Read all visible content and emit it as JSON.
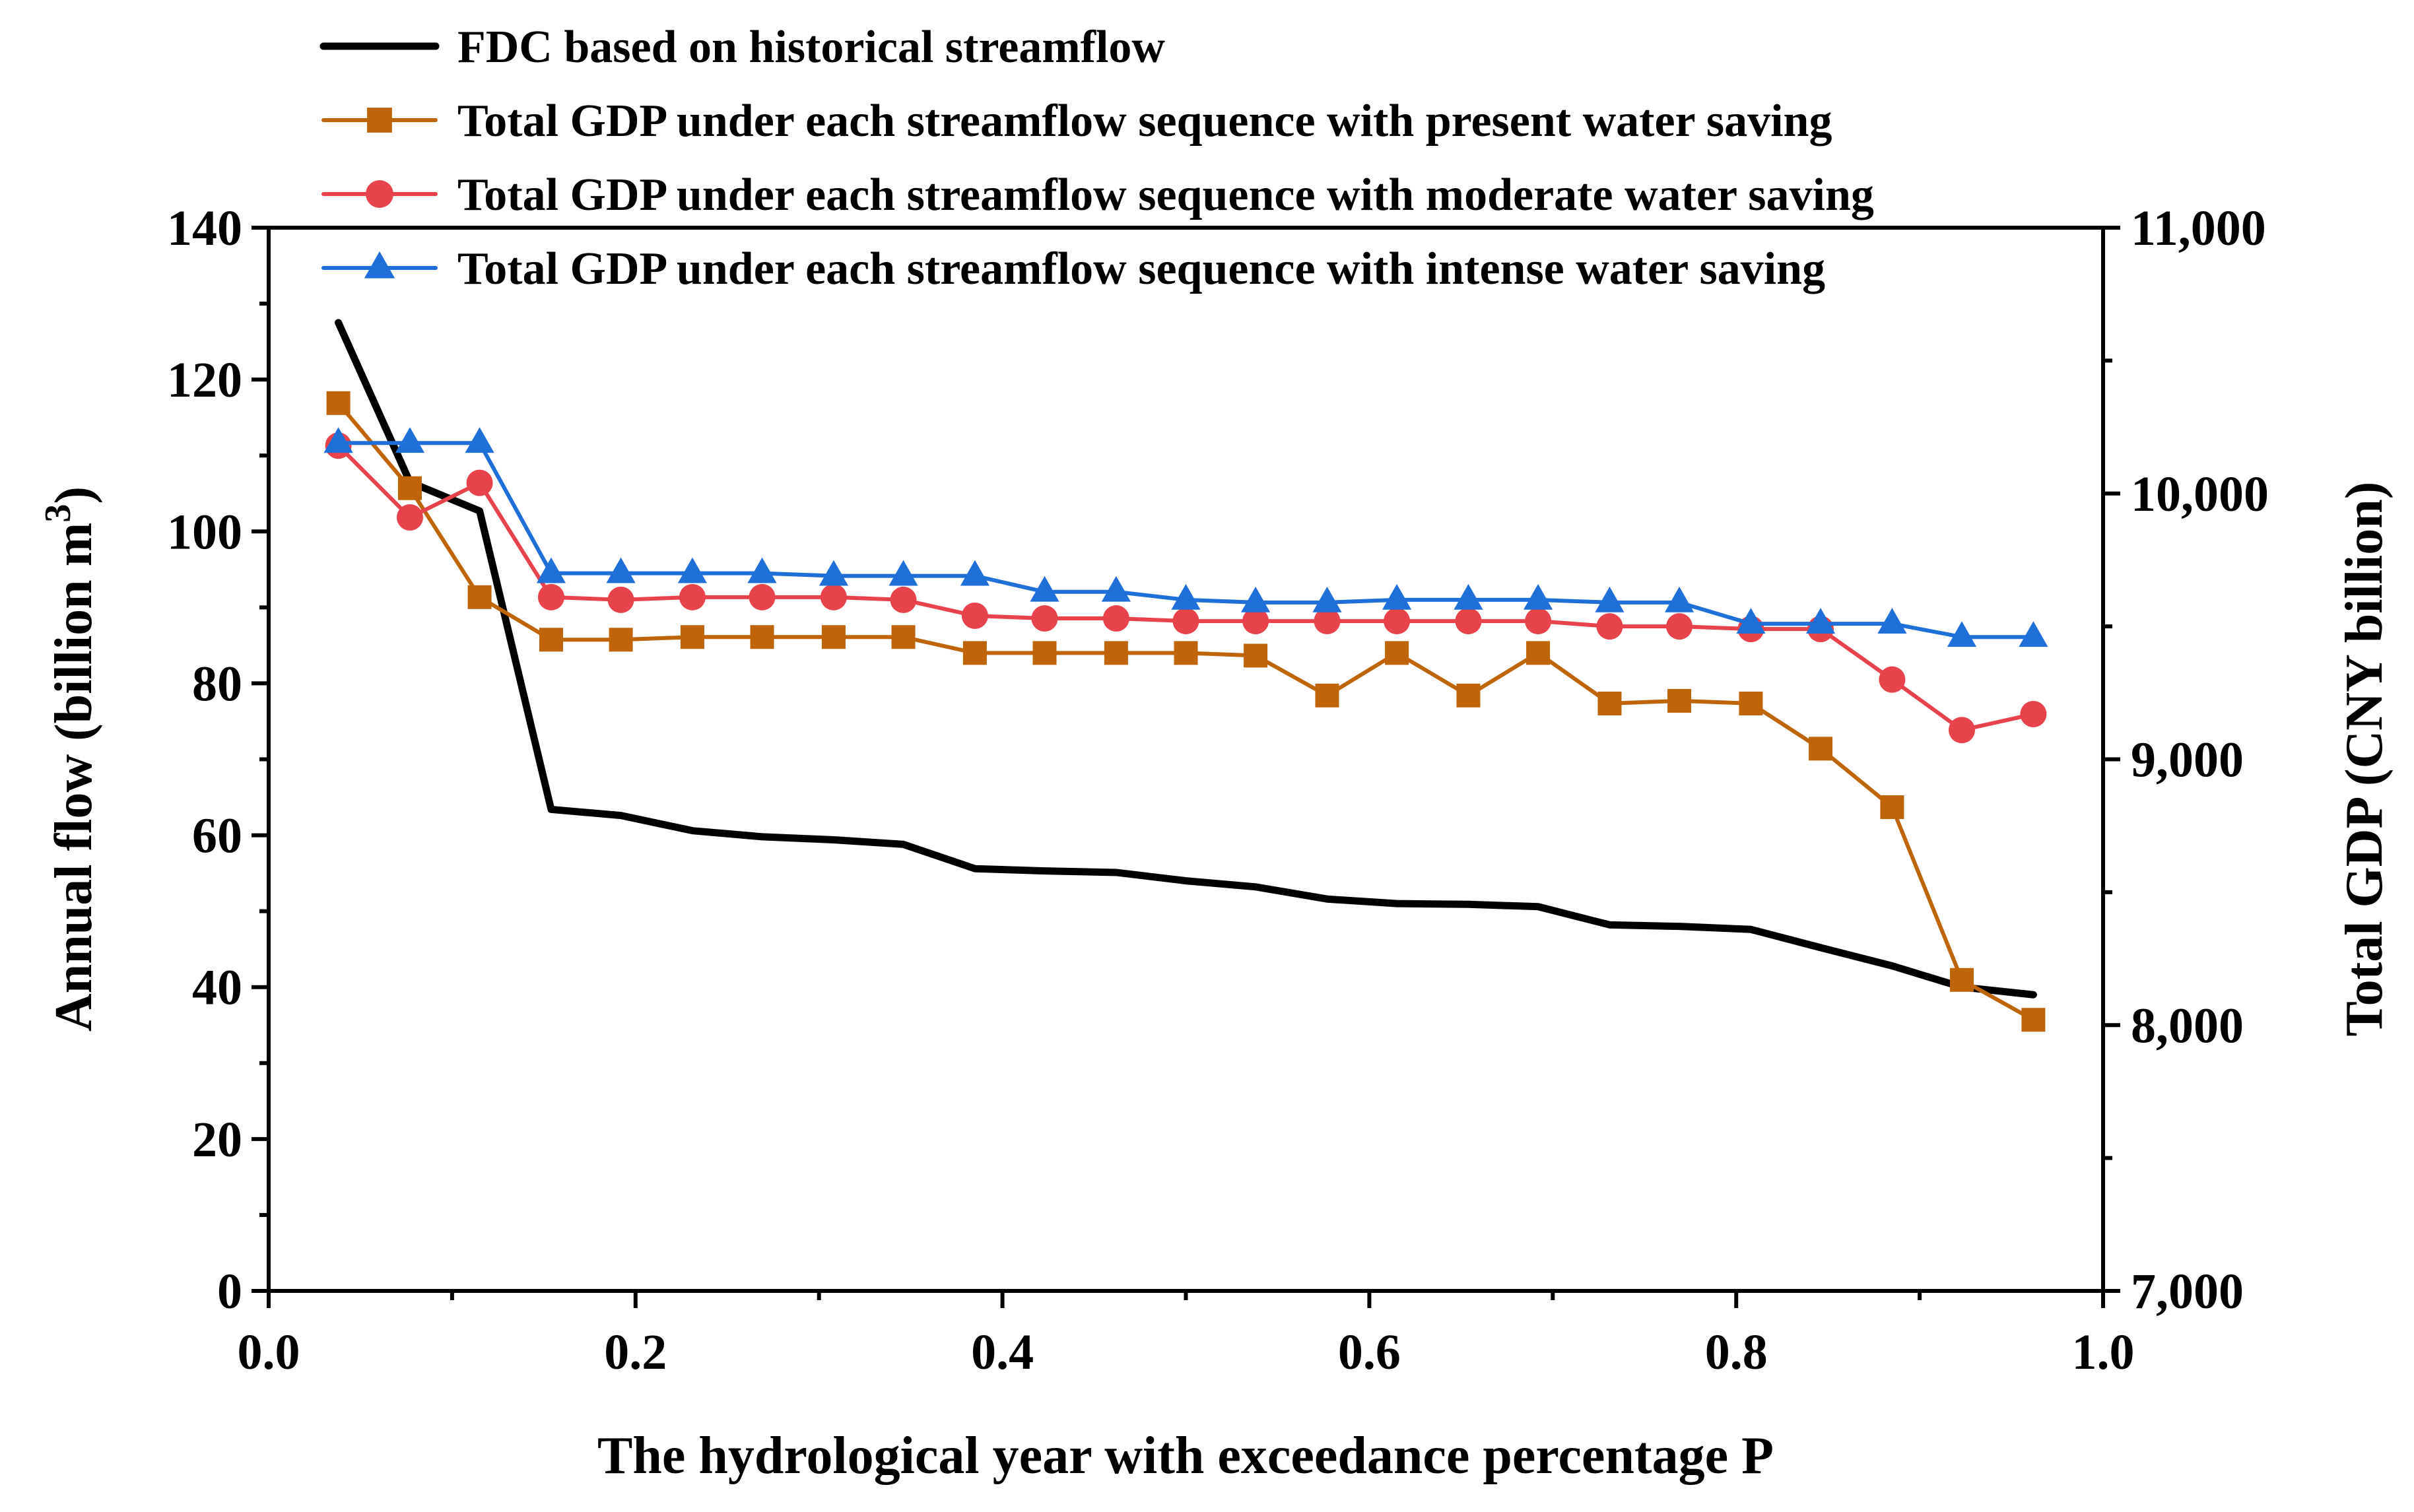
{
  "chart_data": {
    "type": "line",
    "xlabel": "The hydrological year with exceedance percentage P",
    "ylabel_left": "Annual flow (billion m",
    "ylabel_left_superscript": "3",
    "ylabel_left_suffix": ")",
    "ylabel_right": "Total GDP (CNY billion)",
    "xlim": [
      0.0,
      1.0
    ],
    "ylim_left": [
      0,
      140
    ],
    "ylim_right": [
      7000,
      11000
    ],
    "x_ticks": [
      "0.0",
      "0.2",
      "0.4",
      "0.6",
      "0.8",
      "1.0"
    ],
    "y_left_ticks": [
      "0",
      "20",
      "40",
      "60",
      "80",
      "100",
      "120",
      "140"
    ],
    "y_right_ticks": [
      "7,000",
      "8,000",
      "9,000",
      "10,000",
      "11,000"
    ],
    "grid": false,
    "legend_position": "top",
    "x": [
      0.038,
      0.077,
      0.115,
      0.154,
      0.192,
      0.231,
      0.269,
      0.308,
      0.346,
      0.385,
      0.423,
      0.462,
      0.5,
      0.538,
      0.577,
      0.615,
      0.654,
      0.692,
      0.731,
      0.769,
      0.808,
      0.846,
      0.885,
      0.923,
      0.962
    ],
    "series": [
      {
        "name": "FDC based on historical streamflow",
        "axis": "left",
        "color": "#000000",
        "marker": "none",
        "values": [
          127.5,
          106.5,
          102.7,
          63.4,
          62.6,
          60.6,
          59.8,
          59.4,
          58.8,
          55.6,
          55.3,
          55.1,
          54.0,
          53.2,
          51.6,
          51.0,
          50.9,
          50.6,
          48.2,
          48.0,
          47.6,
          45.2,
          42.8,
          40.0,
          39.0
        ]
      },
      {
        "name": "Total GDP under each streamflow sequence with present water saving",
        "axis": "right",
        "color": "#C0640A",
        "marker": "square",
        "values": [
          10340,
          10020,
          9610,
          9450,
          9450,
          9460,
          9460,
          9460,
          9460,
          9400,
          9400,
          9400,
          9400,
          9390,
          9240,
          9400,
          9240,
          9400,
          9210,
          9220,
          9210,
          9040,
          8820,
          8170,
          8020
        ]
      },
      {
        "name": "Total GDP under each streamflow sequence with moderate water saving",
        "axis": "right",
        "color": "#E8424A",
        "marker": "circle",
        "values": [
          10180,
          9910,
          10040,
          9610,
          9600,
          9610,
          9610,
          9610,
          9600,
          9540,
          9530,
          9530,
          9520,
          9520,
          9520,
          9520,
          9520,
          9520,
          9500,
          9500,
          9490,
          9490,
          9300,
          9110,
          9170
        ]
      },
      {
        "name": "Total GDP under each streamflow sequence with intense water saving",
        "axis": "right",
        "color": "#1F6FD8",
        "marker": "triangle",
        "values": [
          10190,
          10190,
          10190,
          9700,
          9700,
          9700,
          9700,
          9690,
          9690,
          9690,
          9630,
          9630,
          9600,
          9590,
          9590,
          9600,
          9600,
          9600,
          9590,
          9590,
          9510,
          9510,
          9510,
          9460,
          9460
        ]
      }
    ]
  }
}
